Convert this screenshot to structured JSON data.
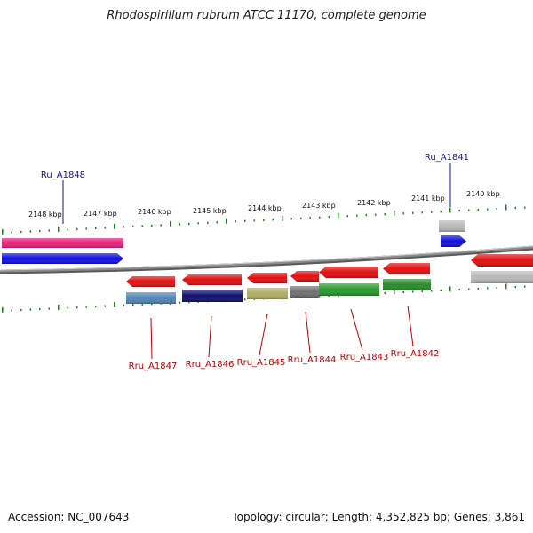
{
  "title": "Rhodospirillum rubrum ATCC 11170, complete genome",
  "footer": {
    "accession": "Accession: NC_007643",
    "summary": "Topology: circular; Length: 4,352,825 bp; Genes: 3,861"
  },
  "colors": {
    "backbone": "#8a8a8a",
    "ticks": "#1a8a1a",
    "label_top": "#1010a0",
    "label_bottom": "#c00000"
  },
  "kbp_ticks": [
    {
      "label": "2148 kbp"
    },
    {
      "label": "2147 kbp"
    },
    {
      "label": "2146 kbp"
    },
    {
      "label": "2145 kbp"
    },
    {
      "label": "2144 kbp"
    },
    {
      "label": "2143 kbp"
    },
    {
      "label": "2142 kbp"
    },
    {
      "label": "2141 kbp"
    },
    {
      "label": "2140 kbp"
    }
  ],
  "genes": [
    {
      "id": "pink-bar",
      "track": "top1",
      "color": "#e8207a",
      "dir": "none"
    },
    {
      "id": "blue-arrow",
      "track": "top2",
      "color": "#1010e0",
      "dir": "right"
    },
    {
      "id": "grey-top",
      "track": "top1",
      "color": "#b8b8b8",
      "dir": "none"
    },
    {
      "id": "blue-small",
      "track": "top2",
      "color": "#1010e0",
      "dir": "right"
    },
    {
      "id": "red-1847",
      "track": "bot1",
      "color": "#e01010",
      "dir": "left"
    },
    {
      "id": "red-1846",
      "track": "bot1",
      "color": "#e01010",
      "dir": "left"
    },
    {
      "id": "red-1845",
      "track": "bot1",
      "color": "#e01010",
      "dir": "left"
    },
    {
      "id": "red-1844",
      "track": "bot1",
      "color": "#e01010",
      "dir": "left"
    },
    {
      "id": "red-1843",
      "track": "bot1",
      "color": "#e01010",
      "dir": "left"
    },
    {
      "id": "red-1842",
      "track": "bot1",
      "color": "#e01010",
      "dir": "left"
    },
    {
      "id": "red-right",
      "track": "bot1",
      "color": "#e01010",
      "dir": "left"
    },
    {
      "id": "steel-1847",
      "track": "bot2",
      "color": "#4f86b8",
      "dir": "none"
    },
    {
      "id": "navy-1846",
      "track": "bot2",
      "color": "#101070",
      "dir": "none"
    },
    {
      "id": "khaki-1845",
      "track": "bot2",
      "color": "#b0ad68",
      "dir": "none"
    },
    {
      "id": "grey-1844",
      "track": "bot2",
      "color": "#707070",
      "dir": "none"
    },
    {
      "id": "green-1843",
      "track": "bot2",
      "color": "#2a9a2a",
      "dir": "none"
    },
    {
      "id": "green-1842",
      "track": "bot2",
      "color": "#2a8a2a",
      "dir": "none"
    },
    {
      "id": "grey-right",
      "track": "bot2",
      "color": "#b8b8b8",
      "dir": "none"
    }
  ],
  "labels_top": [
    {
      "text": "Ru_A1848"
    },
    {
      "text": "Ru_A1841"
    }
  ],
  "labels_bottom": [
    {
      "text": "Rru_A1847"
    },
    {
      "text": "Rru_A1846"
    },
    {
      "text": "Rru_A1845"
    },
    {
      "text": "Rru_A1844"
    },
    {
      "text": "Rru_A1843"
    },
    {
      "text": "Rru_A1842"
    }
  ]
}
